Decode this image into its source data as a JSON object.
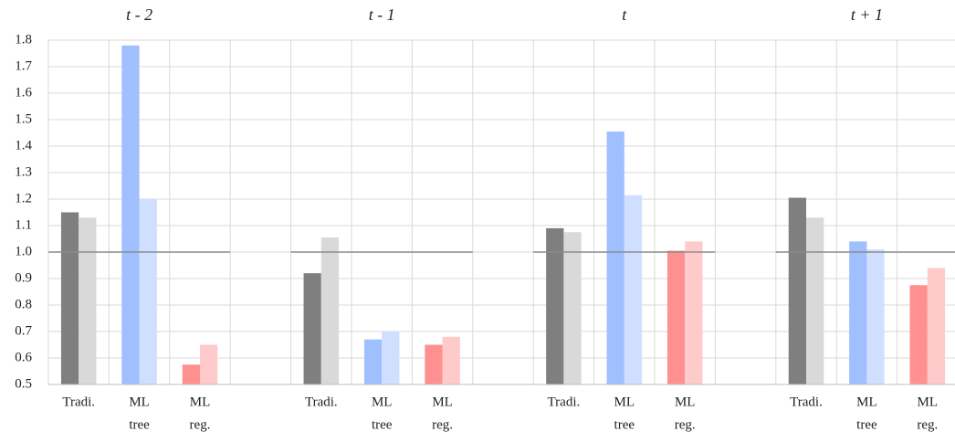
{
  "chart_data": [
    {
      "type": "bar",
      "title": "t - 2",
      "categories": [
        [
          "Tradi."
        ],
        [
          "ML",
          "tree"
        ],
        [
          "ML",
          "reg."
        ]
      ],
      "series": [
        {
          "colors": [
            "#7f7f7f",
            "#a0bfff",
            "#ff9090"
          ],
          "values": [
            1.15,
            1.78,
            0.575
          ]
        },
        {
          "colors": [
            "#d9d9d9",
            "#d0deff",
            "#ffcaca"
          ],
          "values": [
            1.13,
            1.2,
            0.65
          ]
        }
      ],
      "ylim": [
        0.5,
        1.8
      ],
      "yticks": [
        0.5,
        0.6,
        0.7,
        0.8,
        0.9,
        {
          "value": 1,
          "label": "1.0"
        },
        1.1,
        1.2,
        1.3,
        1.4,
        1.5,
        1.6,
        1.7,
        1.8
      ],
      "reference_line": 1,
      "grid": true
    },
    {
      "type": "bar",
      "title": "t - 1",
      "categories": [
        [
          "Tradi."
        ],
        [
          "ML",
          "tree"
        ],
        [
          "ML",
          "reg."
        ]
      ],
      "series": [
        {
          "colors": [
            "#7f7f7f",
            "#a0bfff",
            "#ff9090"
          ],
          "values": [
            0.92,
            0.67,
            0.65
          ]
        },
        {
          "colors": [
            "#d9d9d9",
            "#d0deff",
            "#ffcaca"
          ],
          "values": [
            1.055,
            0.7,
            0.68
          ]
        }
      ],
      "ylim": [
        0.5,
        1.8
      ],
      "reference_line": 1
    },
    {
      "type": "bar",
      "title": "t",
      "categories": [
        [
          "Tradi."
        ],
        [
          "ML",
          "tree"
        ],
        [
          "ML",
          "reg."
        ]
      ],
      "series": [
        {
          "colors": [
            "#7f7f7f",
            "#a0bfff",
            "#ff9090"
          ],
          "values": [
            1.09,
            1.455,
            1.005
          ]
        },
        {
          "colors": [
            "#d9d9d9",
            "#d0deff",
            "#ffcaca"
          ],
          "values": [
            1.075,
            1.215,
            1.04
          ]
        }
      ],
      "ylim": [
        0.5,
        1.8
      ],
      "reference_line": 1
    },
    {
      "type": "bar",
      "title": "t + 1",
      "categories": [
        [
          "Tradi."
        ],
        [
          "ML",
          "tree"
        ],
        [
          "ML",
          "reg."
        ]
      ],
      "series": [
        {
          "colors": [
            "#7f7f7f",
            "#a0bfff",
            "#ff9090"
          ],
          "values": [
            1.205,
            1.04,
            0.875
          ]
        },
        {
          "colors": [
            "#d9d9d9",
            "#d0deff",
            "#ffcaca"
          ],
          "values": [
            1.13,
            1.01,
            0.94
          ]
        }
      ],
      "ylim": [
        0.5,
        1.8
      ],
      "reference_line": 1
    }
  ]
}
